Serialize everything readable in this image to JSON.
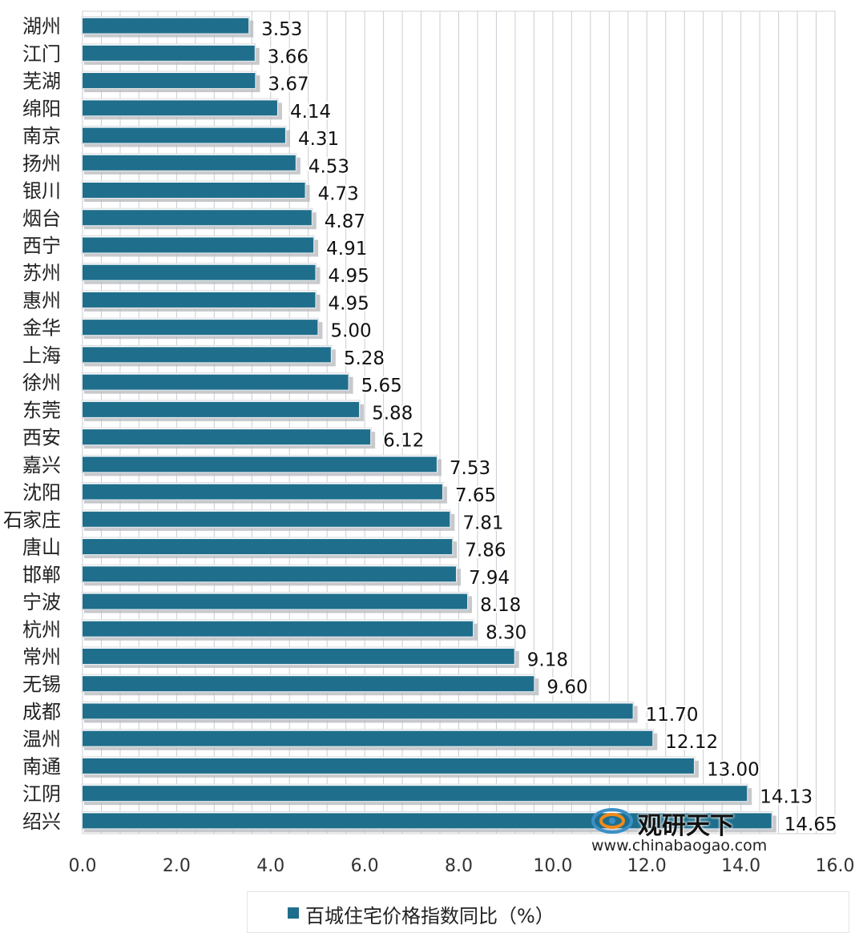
{
  "chart_data": {
    "type": "bar",
    "orientation": "horizontal",
    "categories": [
      "湖州",
      "江门",
      "芜湖",
      "绵阳",
      "南京",
      "扬州",
      "银川",
      "烟台",
      "西宁",
      "苏州",
      "惠州",
      "金华",
      "上海",
      "徐州",
      "东莞",
      "西安",
      "嘉兴",
      "沈阳",
      "石家庄",
      "唐山",
      "邯郸",
      "宁波",
      "杭州",
      "常州",
      "无锡",
      "成都",
      "温州",
      "南通",
      "江阴",
      "绍兴"
    ],
    "series": [
      {
        "name": "百城住宅价格指数同比（%）",
        "color": "#1f6e8c",
        "values": [
          3.53,
          3.66,
          3.67,
          4.14,
          4.31,
          4.53,
          4.73,
          4.87,
          4.91,
          4.95,
          4.95,
          5.0,
          5.28,
          5.65,
          5.88,
          6.12,
          7.53,
          7.65,
          7.81,
          7.86,
          7.94,
          8.18,
          8.3,
          9.18,
          9.6,
          11.7,
          12.12,
          13.0,
          14.13,
          14.65
        ],
        "labels": [
          "3.53",
          "3.66",
          "3.67",
          "4.14",
          "4.31",
          "4.53",
          "4.73",
          "4.87",
          "4.91",
          "4.95",
          "4.95",
          "5.00",
          "5.28",
          "5.65",
          "5.88",
          "6.12",
          "7.53",
          "7.65",
          "7.81",
          "7.86",
          "7.94",
          "8.18",
          "8.30",
          "9.18",
          "9.60",
          "11.70",
          "12.12",
          "13.00",
          "14.13",
          "14.65"
        ]
      }
    ],
    "xlim": [
      0,
      16
    ],
    "x_ticks": [
      "0.0",
      "2.0",
      "4.0",
      "6.0",
      "8.0",
      "10.0",
      "12.0",
      "14.0",
      "16.0"
    ],
    "grid": true,
    "legend_placement": "bottom"
  },
  "legend": {
    "label": "百城住宅价格指数同比（%）"
  },
  "watermark": {
    "brand": "观研天下",
    "site": "www.chinabaogao.com"
  }
}
